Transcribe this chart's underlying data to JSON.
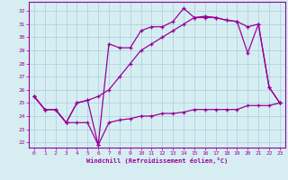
{
  "xlabel": "Windchill (Refroidissement éolien,°C)",
  "background_color": "#d6eef2",
  "line_color": "#990099",
  "grid_color": "#aaccdd",
  "x_ticks": [
    0,
    1,
    2,
    3,
    4,
    5,
    6,
    7,
    8,
    9,
    10,
    11,
    12,
    13,
    14,
    15,
    16,
    17,
    18,
    19,
    20,
    21,
    22,
    23
  ],
  "y_ticks": [
    22,
    23,
    24,
    25,
    26,
    27,
    28,
    29,
    30,
    31,
    32
  ],
  "ylim": [
    21.6,
    32.7
  ],
  "xlim": [
    -0.5,
    23.5
  ],
  "series": {
    "line1": [
      25.5,
      24.5,
      24.5,
      23.5,
      25.0,
      25.2,
      21.8,
      29.5,
      29.2,
      29.2,
      30.5,
      30.8,
      30.8,
      31.2,
      32.2,
      31.5,
      31.6,
      31.5,
      31.3,
      31.2,
      28.8,
      31.0,
      26.2,
      25.0
    ],
    "line2": [
      25.5,
      24.5,
      24.5,
      23.5,
      25.0,
      25.2,
      25.5,
      26.0,
      27.0,
      28.0,
      29.0,
      29.5,
      30.0,
      30.5,
      31.0,
      31.5,
      31.5,
      31.5,
      31.3,
      31.2,
      30.8,
      31.0,
      26.2,
      25.0
    ],
    "line3": [
      25.5,
      24.5,
      24.5,
      23.5,
      23.5,
      23.5,
      21.8,
      23.5,
      23.7,
      23.8,
      24.0,
      24.0,
      24.2,
      24.2,
      24.3,
      24.5,
      24.5,
      24.5,
      24.5,
      24.5,
      24.8,
      24.8,
      24.8,
      25.0
    ]
  }
}
